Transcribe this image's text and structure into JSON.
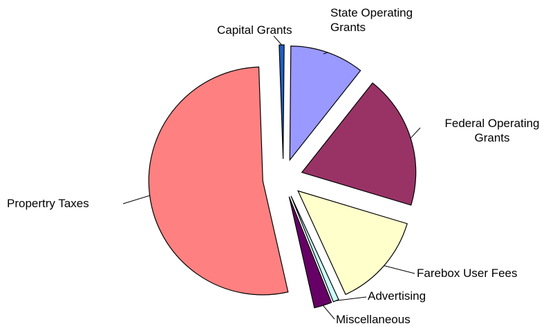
{
  "chart_data": {
    "type": "pie",
    "categories": [
      "Capital Grants",
      "State Operating Grants",
      "Federal Operating Grants",
      "Farebox User Fees",
      "Advertising",
      "Miscellaneous",
      "Propertry Taxes"
    ],
    "values": [
      0.7,
      10.5,
      19,
      13.5,
      0.8,
      2.5,
      53
    ],
    "colors": [
      "#1f5fbf",
      "#9999ff",
      "#993366",
      "#ffffcc",
      "#ccffff",
      "#660066",
      "#ff8080"
    ]
  }
}
